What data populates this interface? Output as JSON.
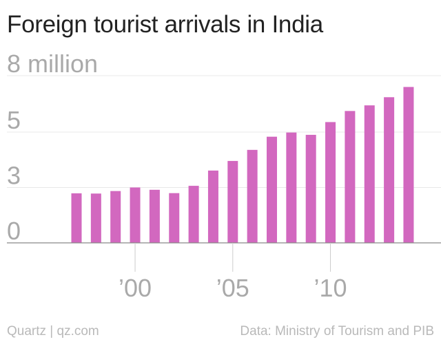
{
  "title": "Foreign tourist arrivals in India",
  "footer": {
    "credit": "Quartz | qz.com",
    "source": "Data: Ministry of Tourism and PIB"
  },
  "colors": {
    "bar": "#d268bf",
    "grid": "#e8e8e8",
    "baseline": "#888888",
    "tick_text": "#a9a9a9"
  },
  "chart_data": {
    "type": "bar",
    "title": "Foreign tourist arrivals in India",
    "xlabel": "",
    "ylabel": "",
    "x": [
      1997,
      1998,
      1999,
      2000,
      2001,
      2002,
      2003,
      2004,
      2005,
      2006,
      2007,
      2008,
      2009,
      2010,
      2011,
      2012,
      2013,
      2014
    ],
    "values": [
      2.37,
      2.36,
      2.48,
      2.65,
      2.54,
      2.38,
      2.73,
      3.46,
      3.92,
      4.45,
      5.08,
      5.28,
      5.17,
      5.78,
      6.31,
      6.58,
      6.97,
      7.46
    ],
    "unit": "million",
    "ylim": [
      0,
      8
    ],
    "yticks": [
      {
        "value": 0,
        "label": "0"
      },
      {
        "value": 2.65,
        "label": "3"
      },
      {
        "value": 5.3,
        "label": "5"
      },
      {
        "value": 8,
        "label": "8 million"
      }
    ],
    "xticks": [
      {
        "value": 2000,
        "label": "’00"
      },
      {
        "value": 2005,
        "label": "’05"
      },
      {
        "value": 2010,
        "label": "’10"
      }
    ],
    "grid": true,
    "legend": "none"
  }
}
